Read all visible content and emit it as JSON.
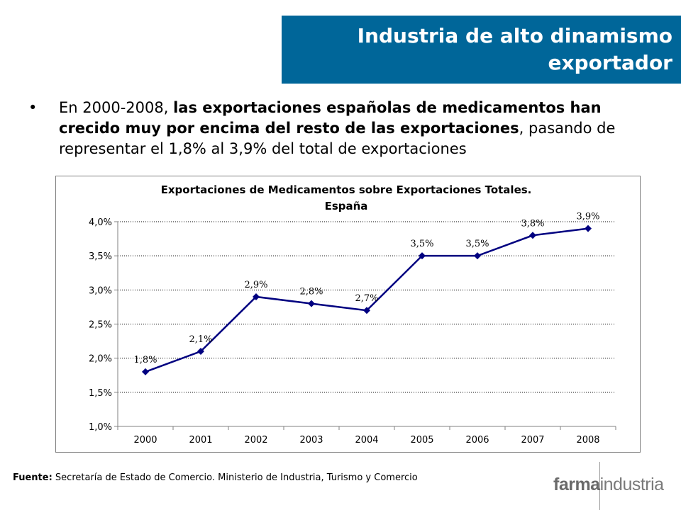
{
  "header": {
    "title_line1": "Industria de alto dinamismo",
    "title_line2": "exportador"
  },
  "bullet": {
    "symbol": "•",
    "text_before": "En 2000-2008, ",
    "text_bold": "las exportaciones españolas de medicamentos han crecido muy por encima del resto de las exportaciones",
    "text_after": ", pasando de representar el 1,8% al 3,9% del total de exportaciones"
  },
  "chart_data": {
    "type": "line",
    "title_line1": "Exportaciones de Medicamentos sobre Exportaciones Totales.",
    "title_line2": "España",
    "categories": [
      "2000",
      "2001",
      "2002",
      "2003",
      "2004",
      "2005",
      "2006",
      "2007",
      "2008"
    ],
    "values": [
      1.8,
      2.1,
      2.9,
      2.8,
      2.7,
      3.5,
      3.5,
      3.8,
      3.9
    ],
    "data_labels": [
      "1,8%",
      "2,1%",
      "2,9%",
      "2,8%",
      "2,7%",
      "3,5%",
      "3,5%",
      "3,8%",
      "3,9%"
    ],
    "y_ticks": [
      1.0,
      1.5,
      2.0,
      2.5,
      3.0,
      3.5,
      4.0
    ],
    "y_tick_labels": [
      "1,0%",
      "1,5%",
      "2,0%",
      "2,5%",
      "3,0%",
      "3,5%",
      "4,0%"
    ],
    "ylim": [
      1.0,
      4.0
    ],
    "grid": "dotted horizontal",
    "line_color": "#000080",
    "marker": "diamond"
  },
  "footer": {
    "source_label": "Fuente:",
    "source_text": " Secretaría de Estado de Comercio. Ministerio de Industria, Turismo y Comercio",
    "logo_bold": "farma",
    "logo_regular": "industria"
  },
  "colors": {
    "header_bg": "#006699",
    "header_text": "#ffffff",
    "series": "#000080"
  }
}
